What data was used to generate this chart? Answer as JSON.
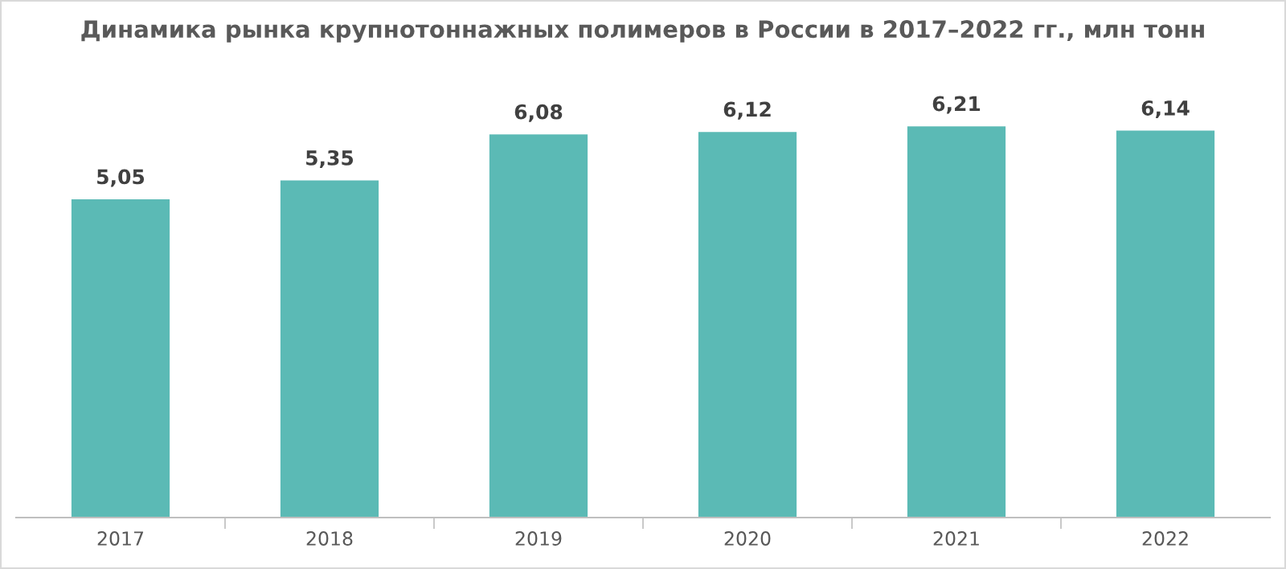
{
  "chart_data": {
    "type": "bar",
    "title": "Динамика рынка крупнотоннажных полимеров в России в 2017–2022 гг., млн тонн",
    "categories": [
      "2017",
      "2018",
      "2019",
      "2020",
      "2021",
      "2022"
    ],
    "values": [
      5.05,
      5.35,
      6.08,
      6.12,
      6.21,
      6.14
    ],
    "value_labels": [
      "5,05",
      "5,35",
      "6,08",
      "6,12",
      "6,21",
      "6,14"
    ],
    "color": "#5bbab5",
    "grid": false,
    "legend": false
  }
}
